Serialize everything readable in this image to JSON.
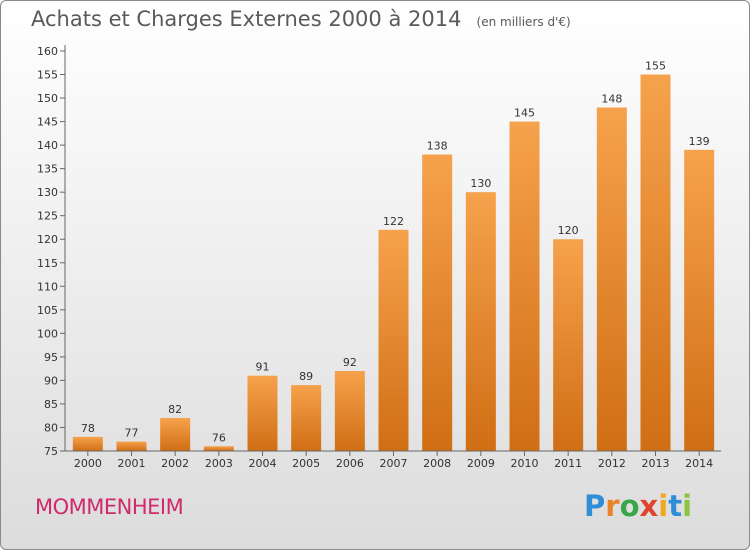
{
  "title": "Achats et Charges Externes 2000 à 2014",
  "subtitle": "(en milliers d'€)",
  "commune": "MOMMENHEIM",
  "logo": {
    "text": "Proxiti",
    "letter_colors": [
      "#2e8fd8",
      "#e8832a",
      "#3aa64a",
      "#e0442f",
      "#f0a81e",
      "#2e8fd8",
      "#8bc53f"
    ]
  },
  "colors": {
    "bar_top": "#f6a24c",
    "bar_bottom": "#d06e14",
    "axis": "#666666",
    "text": "#333333"
  },
  "chart_data": {
    "type": "bar",
    "categories": [
      "2000",
      "2001",
      "2002",
      "2003",
      "2004",
      "2005",
      "2006",
      "2007",
      "2008",
      "2009",
      "2010",
      "2011",
      "2012",
      "2013",
      "2014"
    ],
    "values": [
      78,
      77,
      82,
      76,
      91,
      89,
      92,
      122,
      138,
      130,
      145,
      120,
      148,
      155,
      139
    ],
    "title": "Achats et Charges Externes 2000 à 2014",
    "subtitle": "(en milliers d'€)",
    "ylim": [
      75,
      160
    ],
    "yticks": [
      75,
      80,
      85,
      90,
      95,
      100,
      105,
      110,
      115,
      120,
      125,
      130,
      135,
      140,
      145,
      150,
      155,
      160
    ],
    "grid": false,
    "data_labels": true
  }
}
